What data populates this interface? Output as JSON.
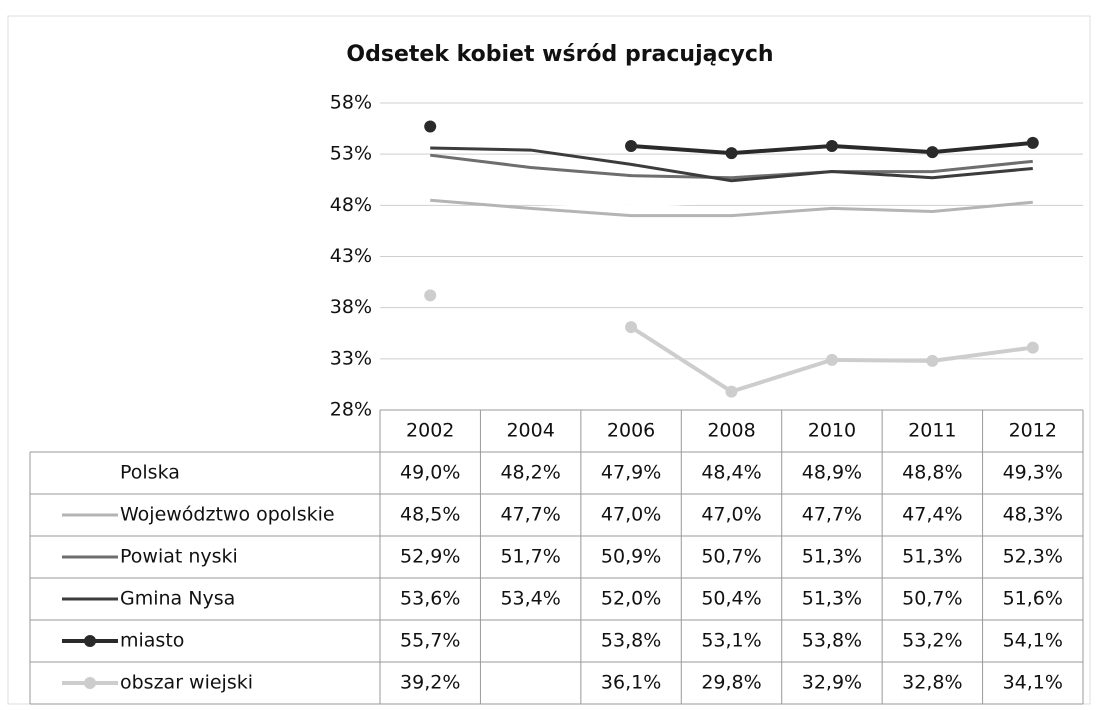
{
  "chart_data": {
    "type": "line",
    "title": "Odsetek kobiet wśród pracujących",
    "categories": [
      "2002",
      "2004",
      "2006",
      "2008",
      "2010",
      "2011",
      "2012"
    ],
    "ylim": [
      28,
      58
    ],
    "yticks": [
      {
        "value": 28,
        "label": "28%"
      },
      {
        "value": 33,
        "label": "33%"
      },
      {
        "value": 38,
        "label": "38%"
      },
      {
        "value": 43,
        "label": "43%"
      },
      {
        "value": 48,
        "label": "48%"
      },
      {
        "value": 53,
        "label": "53%"
      },
      {
        "value": 58,
        "label": "58%"
      }
    ],
    "grid": true,
    "series": [
      {
        "name": "Polska",
        "color": "#ffffff",
        "marker": false,
        "values": [
          49.0,
          48.2,
          47.9,
          48.4,
          48.9,
          48.8,
          49.3
        ],
        "value_labels": [
          "49,0%",
          "48,2%",
          "47,9%",
          "48,4%",
          "48,9%",
          "48,8%",
          "49,3%"
        ]
      },
      {
        "name": "Województwo opolskie",
        "color": "#b4b4b4",
        "marker": false,
        "values": [
          48.5,
          47.7,
          47.0,
          47.0,
          47.7,
          47.4,
          48.3
        ],
        "value_labels": [
          "48,5%",
          "47,7%",
          "47,0%",
          "47,0%",
          "47,7%",
          "47,4%",
          "48,3%"
        ]
      },
      {
        "name": "Powiat nyski",
        "color": "#6e6e6e",
        "marker": false,
        "values": [
          52.9,
          51.7,
          50.9,
          50.7,
          51.3,
          51.3,
          52.3
        ],
        "value_labels": [
          "52,9%",
          "51,7%",
          "50,9%",
          "50,7%",
          "51,3%",
          "51,3%",
          "52,3%"
        ]
      },
      {
        "name": "Gmina Nysa",
        "color": "#3c3c3c",
        "marker": false,
        "values": [
          53.6,
          53.4,
          52.0,
          50.4,
          51.3,
          50.7,
          51.6
        ],
        "value_labels": [
          "53,6%",
          "53,4%",
          "52,0%",
          "50,4%",
          "51,3%",
          "50,7%",
          "51,6%"
        ]
      },
      {
        "name": "miasto",
        "color": "#2a2a2a",
        "marker": true,
        "values": [
          55.7,
          null,
          53.8,
          53.1,
          53.8,
          53.2,
          54.1
        ],
        "value_labels": [
          "55,7%",
          null,
          "53,8%",
          "53,1%",
          "53,8%",
          "53,2%",
          "54,1%"
        ]
      },
      {
        "name": "obszar wiejski",
        "color": "#cdcdcd",
        "marker": true,
        "values": [
          39.2,
          null,
          36.1,
          29.8,
          32.9,
          32.8,
          34.1
        ],
        "value_labels": [
          "39,2%",
          null,
          "36,1%",
          "29,8%",
          "32,9%",
          "32,8%",
          "34,1%"
        ]
      }
    ]
  }
}
